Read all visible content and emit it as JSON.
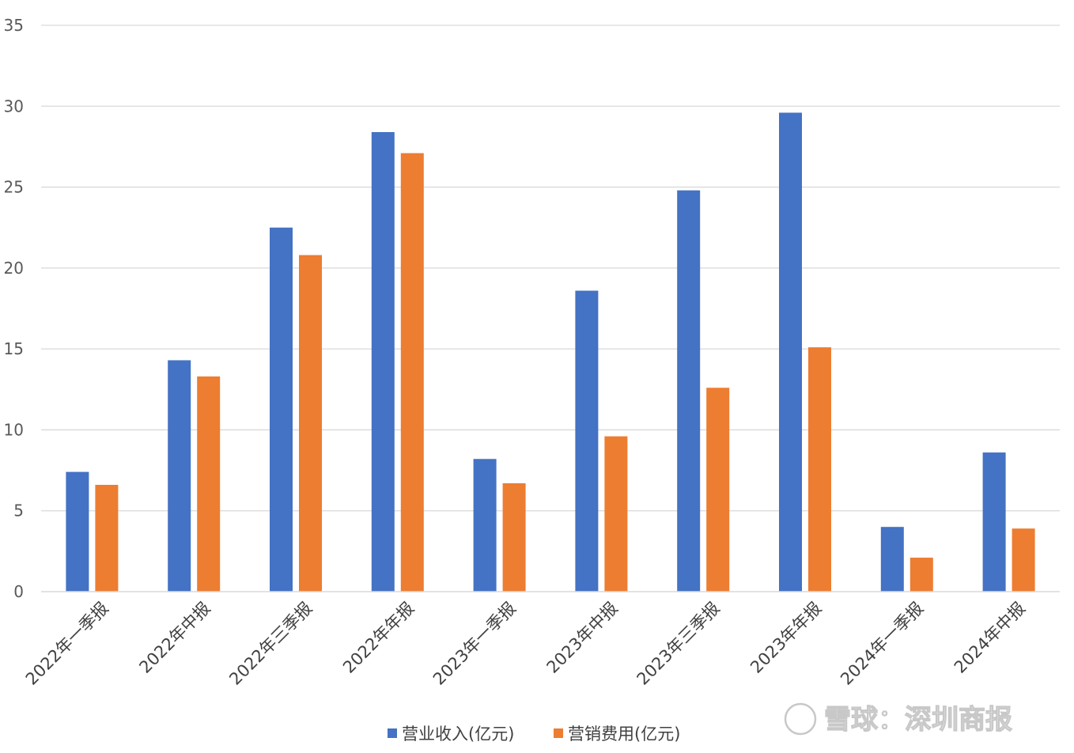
{
  "chart_data": {
    "type": "bar",
    "categories": [
      "2022年一季报",
      "2022年中报",
      "2022年三季报",
      "2022年年报",
      "2023年一季报",
      "2023年中报",
      "2023年三季报",
      "2023年年报",
      "2024年一季报",
      "2024年中报"
    ],
    "series": [
      {
        "name": "营业收入(亿元)",
        "color": "#4472C4",
        "values": [
          7.4,
          14.3,
          22.5,
          28.4,
          8.2,
          18.6,
          24.8,
          29.6,
          4.0,
          8.6
        ]
      },
      {
        "name": "营销费用(亿元)",
        "color": "#ED7D31",
        "values": [
          6.6,
          13.3,
          20.8,
          27.1,
          6.7,
          9.6,
          12.6,
          15.1,
          2.1,
          3.9
        ]
      }
    ],
    "yticks": [
      "0",
      "5",
      "10",
      "15",
      "20",
      "25",
      "30",
      "35"
    ],
    "ylim": [
      0,
      35
    ],
    "grid": true,
    "legend_position": "bottom"
  },
  "watermark": "雪球：深圳商报"
}
